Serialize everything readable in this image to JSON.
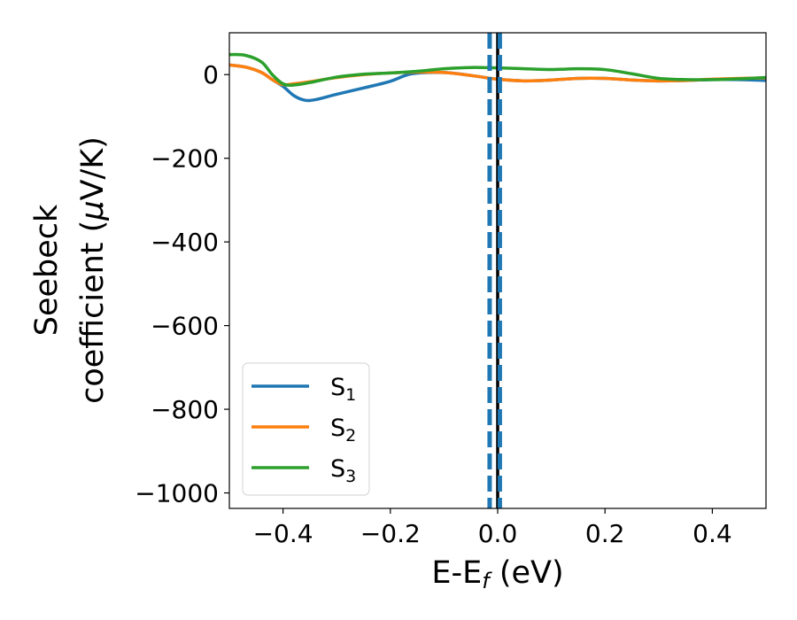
{
  "chart_data": {
    "type": "line",
    "title": "",
    "xlabel": "E-E",
    "xlabel_sub": "f",
    "xlabel_unit": " (eV)",
    "ylabel_line1": "Seebeck",
    "ylabel_line2_pre": "coefficient  (",
    "ylabel_line2_mu": "μ",
    "ylabel_line2_post": "V/K)",
    "xlim": [
      -0.5,
      0.5
    ],
    "ylim": [
      -1037,
      100
    ],
    "xticks": [
      -0.4,
      -0.2,
      0.0,
      0.2,
      0.4
    ],
    "xtick_labels": [
      "−0.4",
      "−0.2",
      "0.0",
      "0.2",
      "0.4"
    ],
    "yticks": [
      0,
      -200,
      -400,
      -600,
      -800,
      -1000
    ],
    "ytick_labels": [
      "0",
      "−200",
      "−400",
      "−600",
      "−800",
      "−1000"
    ],
    "grid": false,
    "legend_position": "lower-left",
    "series": [
      {
        "name": "S1",
        "label_main": "S",
        "label_sub": "1",
        "color": "#1f77b4",
        "x": [
          -0.5,
          -0.47,
          -0.44,
          -0.42,
          -0.4,
          -0.38,
          -0.36,
          -0.34,
          -0.3,
          -0.25,
          -0.2,
          -0.16,
          -0.1,
          -0.05,
          0.0,
          0.05,
          0.1,
          0.15,
          0.2,
          0.25,
          0.3,
          0.35,
          0.4,
          0.45,
          0.5
        ],
        "y": [
          23,
          18,
          5,
          -12,
          -28,
          -50,
          -61,
          -60,
          -47,
          -32,
          -16,
          2,
          5,
          -2,
          -11,
          -15,
          -13,
          -9,
          -9,
          -13,
          -15,
          -14,
          -12,
          -12,
          -14
        ]
      },
      {
        "name": "S2",
        "label_main": "S",
        "label_sub": "2",
        "color": "#ff7f0e",
        "x": [
          -0.5,
          -0.47,
          -0.44,
          -0.42,
          -0.4,
          -0.38,
          -0.35,
          -0.3,
          -0.25,
          -0.2,
          -0.15,
          -0.1,
          -0.05,
          0.0,
          0.05,
          0.1,
          0.15,
          0.2,
          0.25,
          0.3,
          0.35,
          0.4,
          0.45,
          0.5
        ],
        "y": [
          23,
          18,
          5,
          -12,
          -24,
          -22,
          -17,
          -7,
          0,
          4,
          6,
          5,
          -2,
          -11,
          -15,
          -13,
          -9,
          -9,
          -13,
          -15,
          -14,
          -11,
          -9,
          -8
        ]
      },
      {
        "name": "S3",
        "label_main": "S",
        "label_sub": "3",
        "color": "#2ca02c",
        "x": [
          -0.5,
          -0.47,
          -0.44,
          -0.42,
          -0.4,
          -0.38,
          -0.35,
          -0.3,
          -0.25,
          -0.2,
          -0.15,
          -0.1,
          -0.05,
          0.0,
          0.05,
          0.1,
          0.15,
          0.2,
          0.25,
          0.3,
          0.35,
          0.4,
          0.45,
          0.5
        ],
        "y": [
          48,
          46,
          30,
          0,
          -22,
          -25,
          -19,
          -6,
          1,
          4,
          8,
          14,
          17,
          16,
          14,
          12,
          14,
          12,
          2,
          -9,
          -12,
          -12,
          -10,
          -7
        ]
      }
    ],
    "vlines": [
      {
        "name": "fermi-level",
        "x": 0.0,
        "color": "#000000",
        "style": "solid"
      },
      {
        "name": "band-edge-left",
        "x": -0.015,
        "color": "#1f77b4",
        "style": "dashed"
      },
      {
        "name": "band-edge-right",
        "x": 0.004,
        "color": "#1f77b4",
        "style": "dashed"
      }
    ]
  }
}
